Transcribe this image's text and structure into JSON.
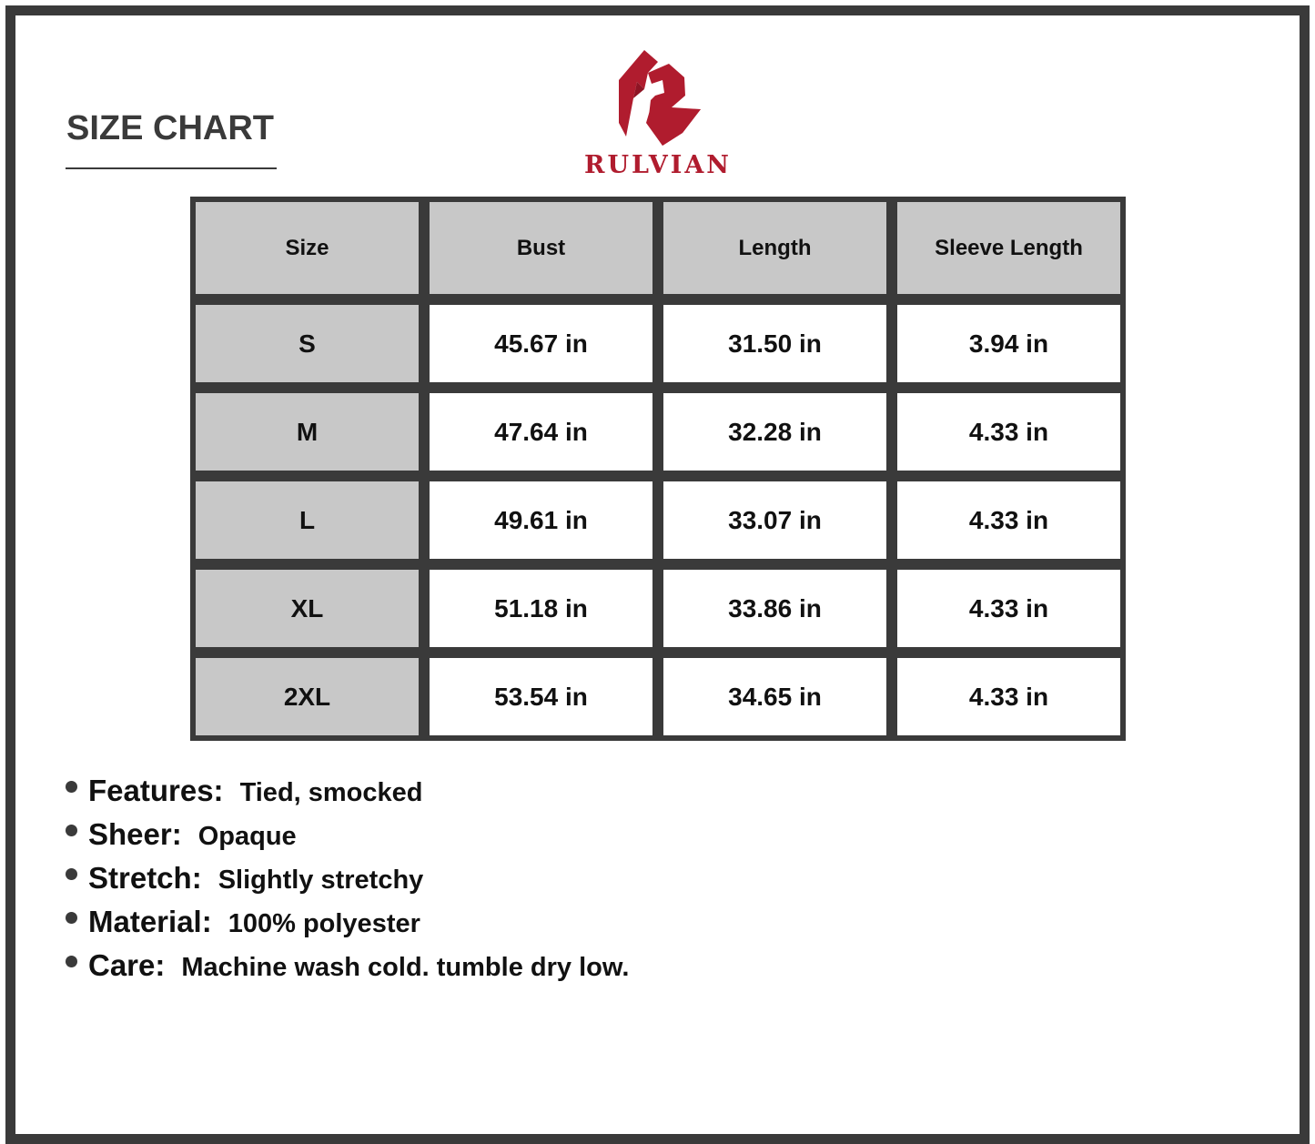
{
  "title": "SIZE CHART",
  "brand": {
    "name": "RULVIAN",
    "color": "#b01c2e"
  },
  "table": {
    "headers": [
      "Size",
      "Bust",
      "Length",
      "Sleeve Length"
    ],
    "rows": [
      [
        "S",
        "45.67 in",
        "31.50 in",
        "3.94 in"
      ],
      [
        "M",
        "47.64 in",
        "32.28 in",
        "4.33 in"
      ],
      [
        "L",
        "49.61 in",
        "33.07 in",
        "4.33 in"
      ],
      [
        "XL",
        "51.18 in",
        "33.86 in",
        "4.33 in"
      ],
      [
        "2XL",
        "53.54 in",
        "34.65 in",
        "4.33 in"
      ]
    ]
  },
  "specs": [
    {
      "label": "Features:",
      "value": "Tied, smocked"
    },
    {
      "label": "Sheer:",
      "value": "Opaque"
    },
    {
      "label": "Stretch:",
      "value": "Slightly stretchy"
    },
    {
      "label": "Material:",
      "value": "100% polyester"
    },
    {
      "label": "Care:",
      "value": "Machine wash cold. tumble dry low."
    }
  ]
}
